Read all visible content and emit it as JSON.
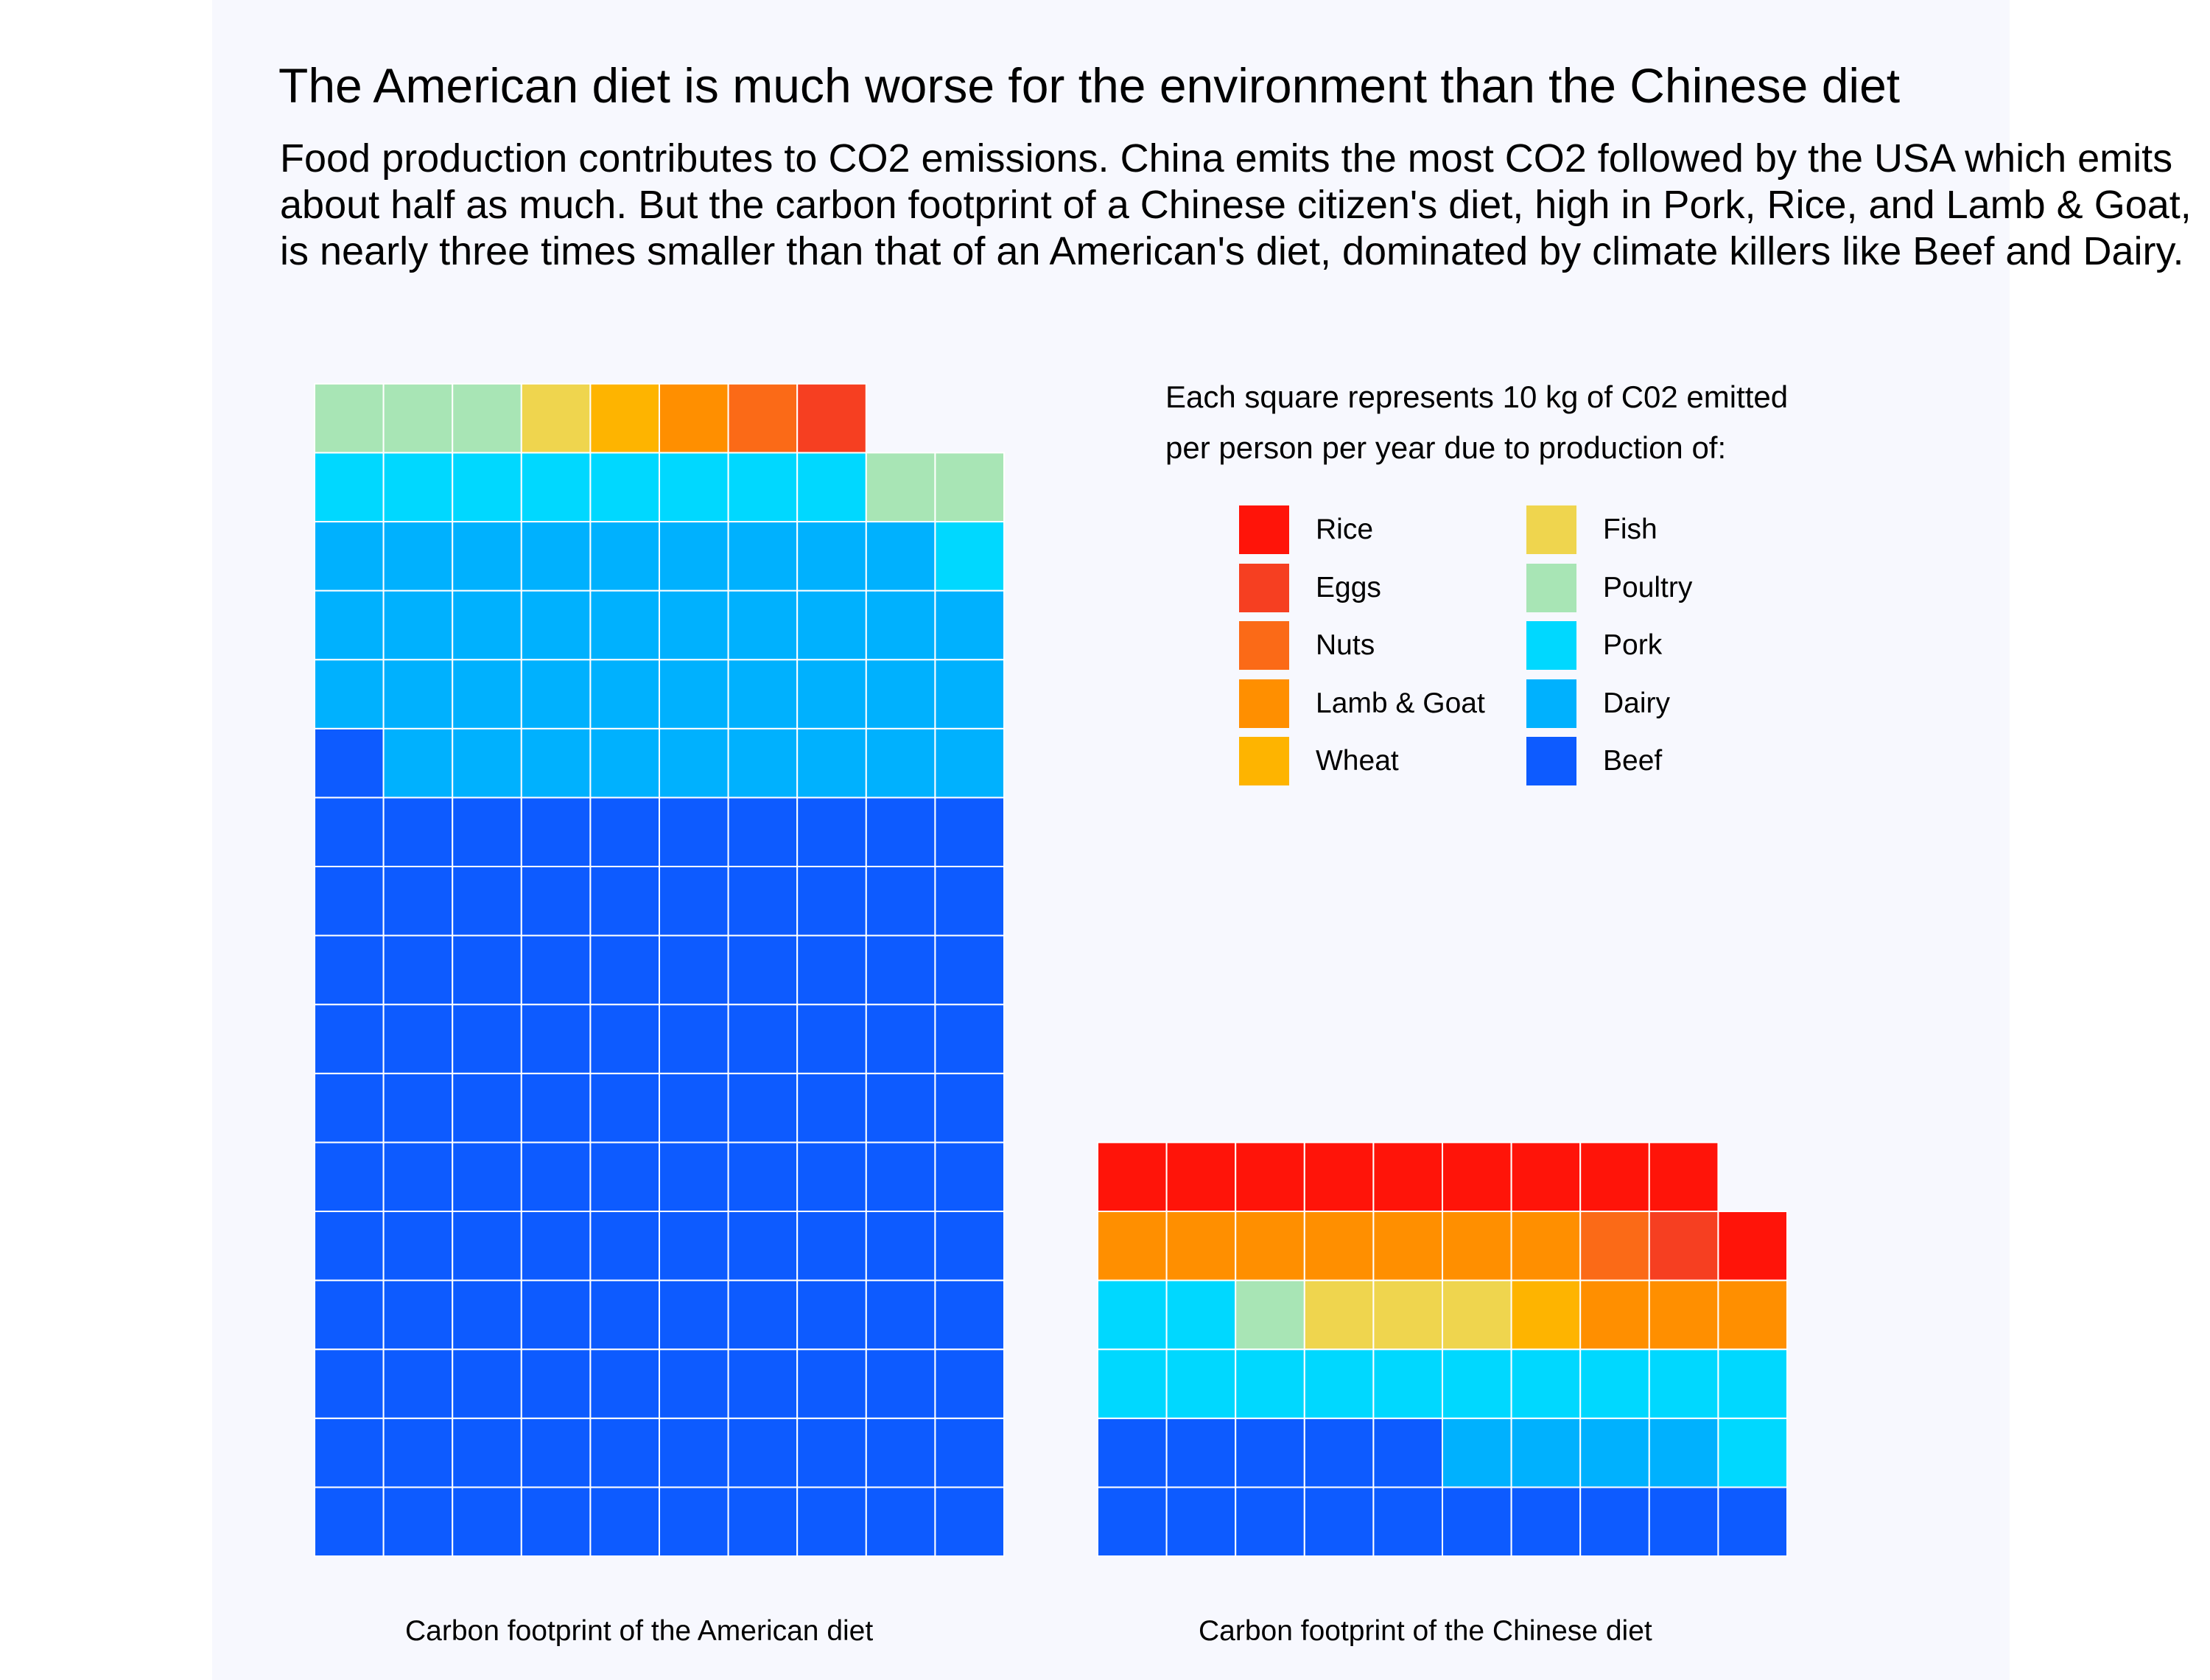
{
  "title": "The American diet is much worse for the environment than the Chinese diet",
  "subtitle": "Food production contributes to CO2 emissions. China emits the most CO2 followed by the USA which emits about half as much. But the carbon footprint of a Chinese citizen's diet, high in Pork, Rice, and Lamb & Goat, is nearly three times smaller than that of an American's diet, dominated by climate killers like Beef and Dairy.",
  "legend": {
    "title": "Each square represents 10 kg of C02 emitted\nper person per year due to production of:",
    "items": [
      {
        "label": "Rice",
        "color": "#ff1409"
      },
      {
        "label": "Eggs",
        "color": "#f63f21"
      },
      {
        "label": "Nuts",
        "color": "#fb6a17"
      },
      {
        "label": "Lamb & Goat",
        "color": "#ff8f00"
      },
      {
        "label": "Wheat",
        "color": "#feb400"
      },
      {
        "label": "Fish",
        "color": "#efd54e"
      },
      {
        "label": "Poultry",
        "color": "#a8e5b5"
      },
      {
        "label": "Pork",
        "color": "#00d8ff"
      },
      {
        "label": "Dairy",
        "color": "#00b1fe"
      },
      {
        "label": "Beef",
        "color": "#0d5bff"
      }
    ]
  },
  "chart_data": [
    {
      "type": "waffle",
      "caption": "Carbon footprint of the American diet",
      "unit": "10 kg CO2 per person per year",
      "columns": 10,
      "categories": [
        "Beef",
        "Dairy",
        "Pork",
        "Poultry",
        "Fish",
        "Wheat",
        "Lamb & Goat",
        "Nuts",
        "Eggs",
        "Rice"
      ],
      "values": [
        111,
        38,
        9,
        5,
        1,
        1,
        1,
        1,
        1,
        0
      ]
    },
    {
      "type": "waffle",
      "caption": "Carbon footprint of the Chinese diet",
      "unit": "10 kg CO2 per person per year",
      "columns": 10,
      "categories": [
        "Beef",
        "Dairy",
        "Pork",
        "Poultry",
        "Fish",
        "Wheat",
        "Lamb & Goat",
        "Nuts",
        "Eggs",
        "Rice"
      ],
      "values": [
        15,
        4,
        13,
        1,
        3,
        1,
        10,
        1,
        1,
        10
      ]
    }
  ]
}
